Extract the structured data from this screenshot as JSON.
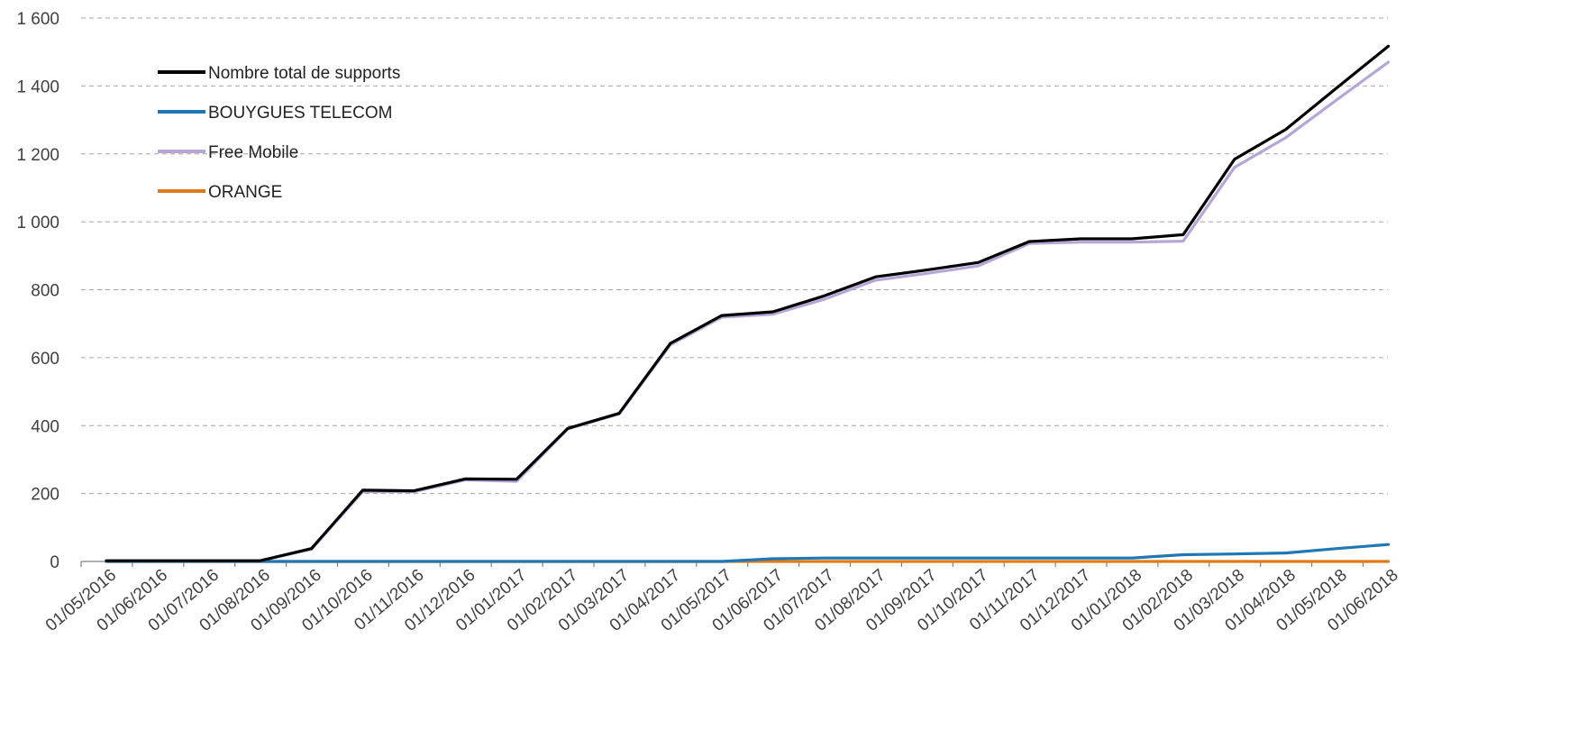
{
  "chart_data": {
    "type": "line",
    "title": "",
    "xlabel": "",
    "ylabel": "",
    "ylim": [
      0,
      1600
    ],
    "yticks": [
      0,
      200,
      400,
      600,
      800,
      1000,
      1200,
      1400,
      1600
    ],
    "ytick_labels": [
      "0",
      "200",
      "400",
      "600",
      "800",
      "1 000",
      "1 200",
      "1 400",
      "1 600"
    ],
    "grid": "horizontal dashed",
    "legend_position": "top-left",
    "categories": [
      "01/05/2016",
      "01/06/2016",
      "01/07/2016",
      "01/08/2016",
      "01/09/2016",
      "01/10/2016",
      "01/11/2016",
      "01/12/2016",
      "01/01/2017",
      "01/02/2017",
      "01/03/2017",
      "01/04/2017",
      "01/05/2017",
      "01/06/2017",
      "01/07/2017",
      "01/08/2017",
      "01/09/2017",
      "01/10/2017",
      "01/11/2017",
      "01/12/2017",
      "01/01/2018",
      "01/02/2018",
      "01/03/2018",
      "01/04/2018",
      "01/05/2018",
      "01/06/2018"
    ],
    "series": [
      {
        "name": "Nombre total de supports",
        "color": "#000000",
        "values": [
          2,
          2,
          2,
          2,
          38,
          210,
          208,
          243,
          242,
          392,
          436,
          642,
          724,
          735,
          782,
          838,
          858,
          880,
          942,
          950,
          950,
          962,
          1184,
          1272,
          1395,
          1517
        ]
      },
      {
        "name": "BOUYGUES TELECOM",
        "color": "#1f77b4",
        "values": [
          0,
          0,
          0,
          0,
          0,
          0,
          0,
          0,
          0,
          0,
          0,
          0,
          0,
          8,
          10,
          10,
          10,
          10,
          10,
          10,
          10,
          20,
          22,
          25,
          38,
          50
        ]
      },
      {
        "name": "Free Mobile",
        "color": "#b4a7d6",
        "values": [
          2,
          2,
          2,
          2,
          36,
          205,
          205,
          240,
          236,
          390,
          434,
          638,
          719,
          728,
          772,
          828,
          848,
          870,
          936,
          940,
          940,
          943,
          1160,
          1248,
          1360,
          1470
        ]
      },
      {
        "name": "ORANGE",
        "color": "#e07b1a",
        "values": [
          0,
          0,
          0,
          0,
          0,
          0,
          0,
          0,
          0,
          0,
          0,
          0,
          0,
          0,
          0,
          0,
          0,
          0,
          0,
          0,
          0,
          0,
          0,
          0,
          0,
          0
        ]
      }
    ]
  }
}
